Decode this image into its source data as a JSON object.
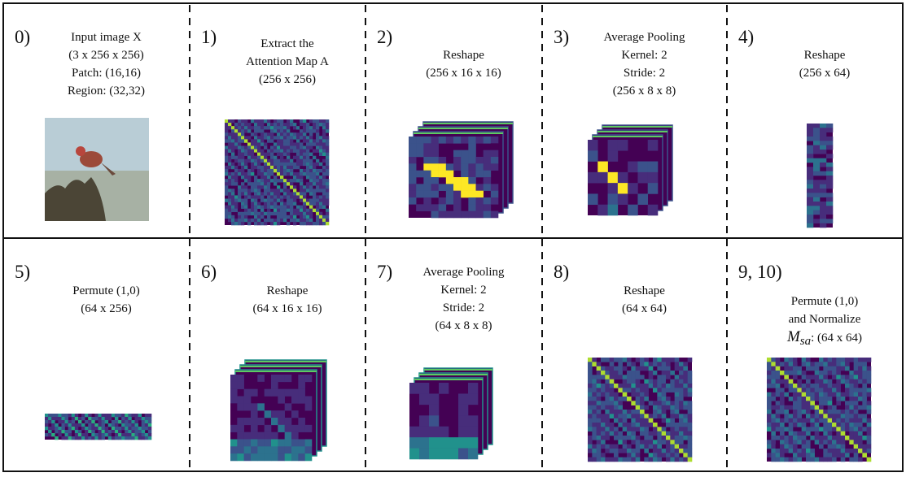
{
  "panels": [
    {
      "step": "0)",
      "lines": [
        "Input image X",
        "(3 x 256 x 256)",
        "Patch: (16,16)",
        "Region: (32,32)"
      ]
    },
    {
      "step": "1)",
      "lines": [
        "Extract the",
        "Attention Map A",
        "(256 x 256)"
      ]
    },
    {
      "step": "2)",
      "lines": [
        "Reshape",
        "(256 x 16 x 16)"
      ]
    },
    {
      "step": "3)",
      "lines": [
        "Average Pooling",
        "Kernel: 2",
        "Stride: 2",
        "(256 x 8 x 8)"
      ]
    },
    {
      "step": "4)",
      "lines": [
        "Reshape",
        "(256 x 64)"
      ]
    },
    {
      "step": "5)",
      "lines": [
        "Permute (1,0)",
        "(64 x 256)"
      ]
    },
    {
      "step": "6)",
      "lines": [
        "Reshape",
        "(64 x 16 x 16)"
      ]
    },
    {
      "step": "7)",
      "lines": [
        "Average Pooling",
        "Kernel: 2",
        "Stride: 2",
        "(64 x 8 x 8)"
      ]
    },
    {
      "step": "8)",
      "lines": [
        "Reshape",
        "(64 x 64)"
      ]
    },
    {
      "step": "9, 10)",
      "lines": [
        "Permute (1,0)",
        "and Normalize"
      ],
      "symbol": "M",
      "subscript": "sa",
      "tail": ": (64 x 64)"
    }
  ]
}
